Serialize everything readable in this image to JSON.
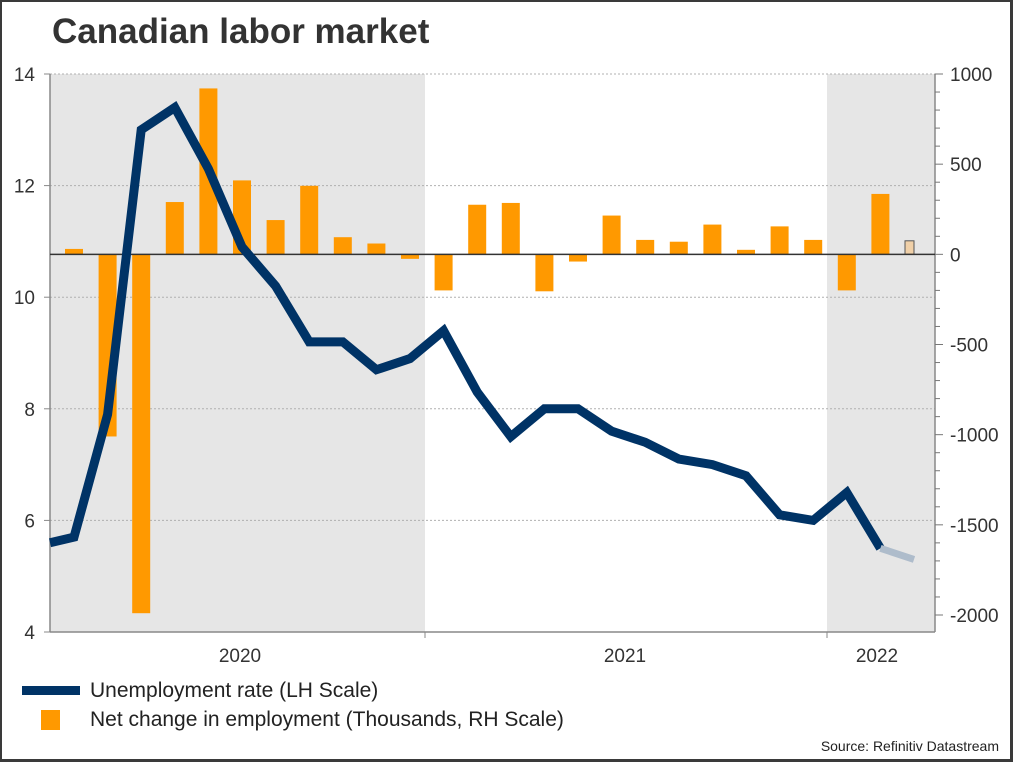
{
  "chart_data": {
    "type": "bar+line",
    "title": "Canadian labor market",
    "source": "Source: Refinitiv Datastream",
    "x_tick_labels": [
      "2020",
      "2021",
      "2022"
    ],
    "left_axis": {
      "label": "Unemployment rate (LH Scale)",
      "range": [
        4,
        14
      ],
      "ticks": [
        4,
        6,
        8,
        10,
        12,
        14
      ],
      "tick_labels": [
        "4",
        "6",
        "8",
        "10",
        "12",
        "14"
      ]
    },
    "right_axis": {
      "label": "Net change in employment (Thousands, RH Scale)",
      "range": [
        -2000,
        1000
      ],
      "ticks": [
        -2000,
        -1500,
        -1000,
        -500,
        0,
        500,
        1000
      ],
      "tick_labels": [
        "-2000",
        "-1500",
        "-1000",
        "-500",
        "0",
        "500",
        "1000"
      ]
    },
    "months": [
      "2020-01",
      "2020-02",
      "2020-03",
      "2020-04",
      "2020-05",
      "2020-06",
      "2020-07",
      "2020-08",
      "2020-09",
      "2020-10",
      "2020-11",
      "2020-12",
      "2021-01",
      "2021-02",
      "2021-03",
      "2021-04",
      "2021-05",
      "2021-06",
      "2021-07",
      "2021-08",
      "2021-09",
      "2021-10",
      "2021-11",
      "2021-12",
      "2022-01",
      "2022-02",
      "2022-03"
    ],
    "series": [
      {
        "name": "Unemployment rate (LH Scale)",
        "axis": "left",
        "kind": "line",
        "color": "#003366",
        "values": [
          5.6,
          5.7,
          7.9,
          13.0,
          13.4,
          12.3,
          10.9,
          10.2,
          9.2,
          9.2,
          8.7,
          8.9,
          9.4,
          8.3,
          7.5,
          8.0,
          8.0,
          7.6,
          7.4,
          7.1,
          7.0,
          6.8,
          6.1,
          6.0,
          6.5,
          5.5,
          5.3
        ],
        "forecast_from_index": 25,
        "forecast_color": "#aebccb"
      },
      {
        "name": "Net change in employment (Thousands, RH Scale)",
        "axis": "right",
        "kind": "bar",
        "color": "#ff9900",
        "values": [
          null,
          30,
          -1010,
          -1990,
          290,
          920,
          410,
          190,
          380,
          95,
          60,
          -25,
          -200,
          275,
          285,
          -205,
          -40,
          215,
          80,
          70,
          165,
          25,
          155,
          80,
          -200,
          335,
          75
        ],
        "forecast_from_index": 26,
        "forecast_color": "#f0d0a8"
      }
    ],
    "shaded_periods": [
      [
        "2020-01",
        "2020-12"
      ],
      [
        "2022-01",
        "2022-03"
      ]
    ],
    "shade_color": "#e6e6e6",
    "grid": true,
    "legend_position": "bottom-left"
  }
}
